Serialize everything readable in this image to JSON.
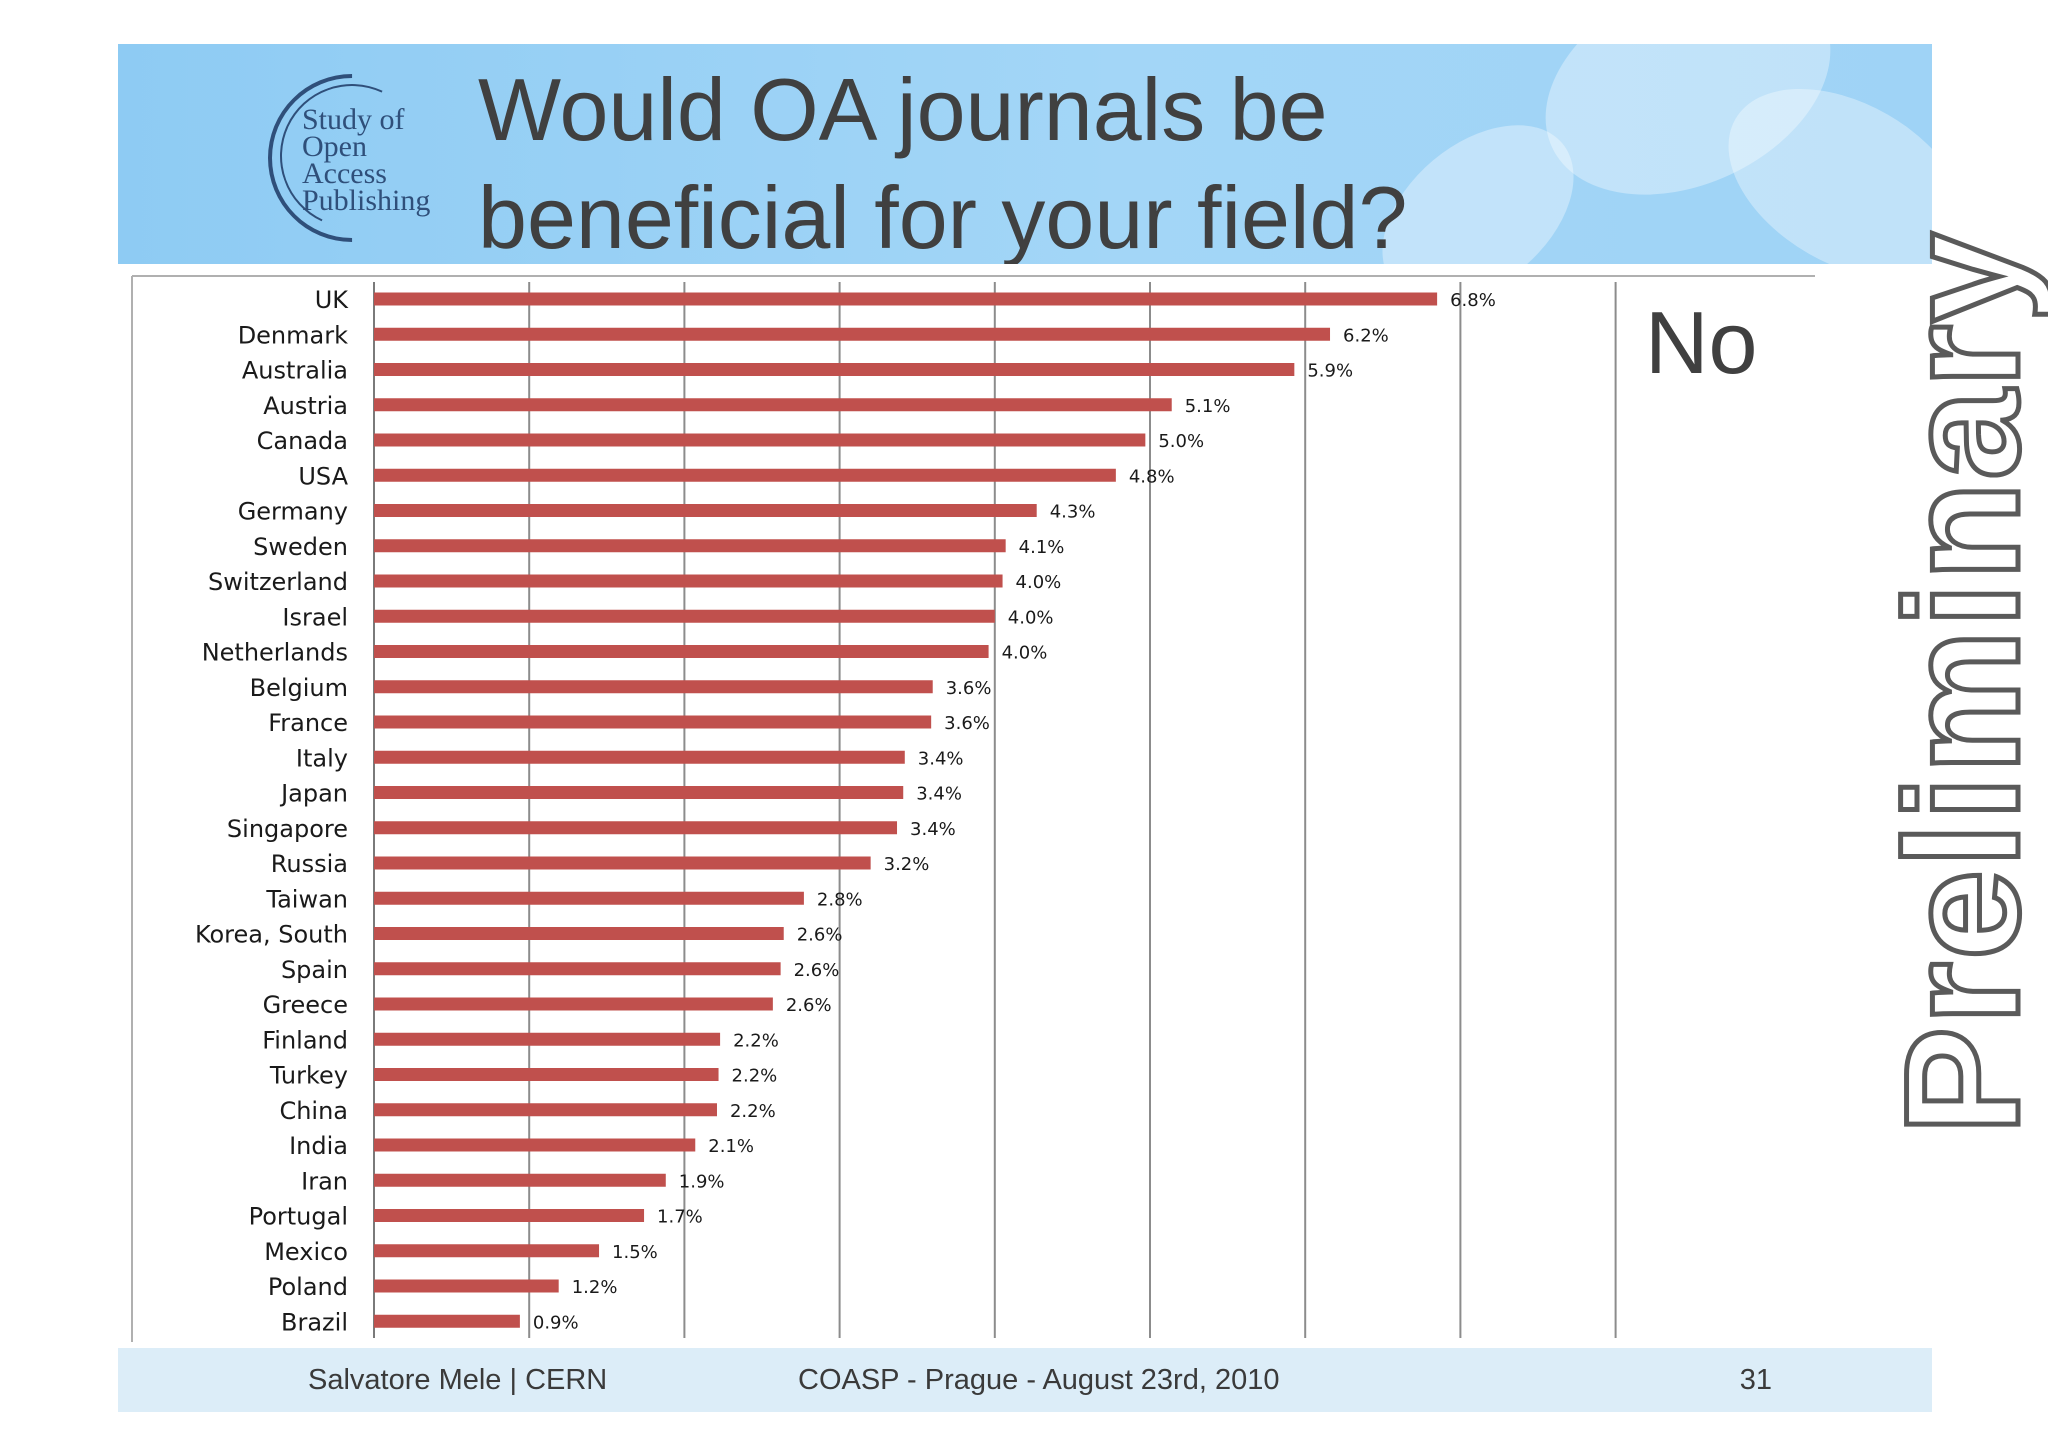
{
  "header": {
    "title_line1": "Would OA journals be",
    "title_line2": "beneficial for your field?",
    "logo_lines": [
      "Study of",
      "Open",
      "Access",
      "Publishing"
    ]
  },
  "panel_label": "No",
  "watermark": "Preliminary",
  "footer": {
    "author": "Salvatore Mele | CERN",
    "event": "COASP - Prague - August 23rd, 2010",
    "page": "31"
  },
  "colors": {
    "bar": "#c0504d",
    "header_blue": "#9fd3f6",
    "footer_blue": "#dcedf8",
    "grid": "#8c8c8c"
  },
  "chart_data": {
    "type": "bar",
    "orientation": "horizontal",
    "title": "",
    "xlabel": "",
    "ylabel": "",
    "xlim": [
      0,
      8
    ],
    "grid": true,
    "categories": [
      "UK",
      "Denmark",
      "Australia",
      "Austria",
      "Canada",
      "USA",
      "Germany",
      "Sweden",
      "Switzerland",
      "Israel",
      "Netherlands",
      "Belgium",
      "France",
      "Italy",
      "Japan",
      "Singapore",
      "Russia",
      "Taiwan",
      "Korea, South",
      "Spain",
      "Greece",
      "Finland",
      "Turkey",
      "China",
      "India",
      "Iran",
      "Portugal",
      "Mexico",
      "Poland",
      "Brazil"
    ],
    "values": [
      6.85,
      6.16,
      5.93,
      5.14,
      4.97,
      4.78,
      4.27,
      4.07,
      4.05,
      4.0,
      3.96,
      3.6,
      3.59,
      3.42,
      3.41,
      3.37,
      3.2,
      2.77,
      2.64,
      2.62,
      2.57,
      2.23,
      2.22,
      2.21,
      2.07,
      1.88,
      1.74,
      1.45,
      1.19,
      0.94
    ],
    "labels": [
      "6.8%",
      "6.2%",
      "5.9%",
      "5.1%",
      "5.0%",
      "4.8%",
      "4.3%",
      "4.1%",
      "4.0%",
      "4.0%",
      "4.0%",
      "3.6%",
      "3.6%",
      "3.4%",
      "3.4%",
      "3.4%",
      "3.2%",
      "2.8%",
      "2.6%",
      "2.6%",
      "2.6%",
      "2.2%",
      "2.2%",
      "2.2%",
      "2.1%",
      "1.9%",
      "1.7%",
      "1.5%",
      "1.2%",
      "0.9%"
    ]
  }
}
